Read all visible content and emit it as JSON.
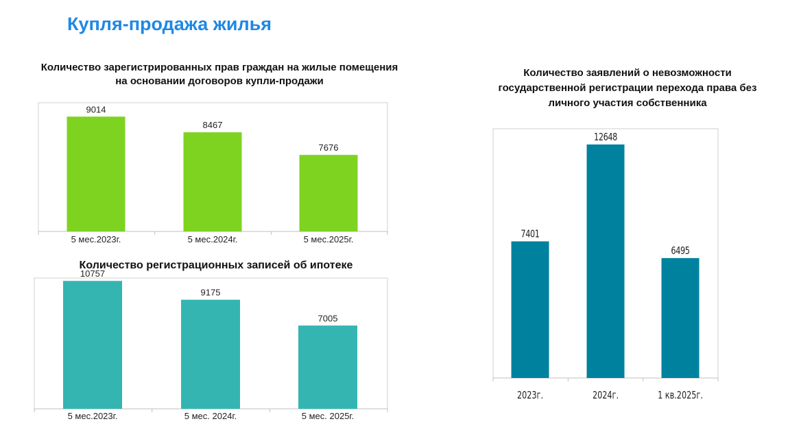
{
  "page": {
    "title": "Купля-продажа жилья"
  },
  "chart_data": [
    {
      "id": "rights",
      "type": "bar",
      "title_lines": [
        "Количество зарегистрированных прав граждан на жилые помещения",
        "на основании договоров купли-продажи"
      ],
      "categories": [
        "5 мес.2023г.",
        "5 мес.2024г.",
        "5 мес.2025г."
      ],
      "values": [
        9014,
        8467,
        7676
      ],
      "ylim": [
        5000,
        9500
      ],
      "color": "#7ed321"
    },
    {
      "id": "mortgage",
      "type": "bar",
      "title_lines": [
        "Количество регистрационных записей об ипотеке"
      ],
      "categories": [
        "5 мес.2023г.",
        "5 мес. 2024г.",
        "5 мес. 2025г."
      ],
      "values": [
        10757,
        9175,
        7005
      ],
      "ylim": [
        0,
        11000
      ],
      "color": "#34b5b2"
    },
    {
      "id": "applications",
      "type": "bar",
      "title_lines": [
        "Количество заявлений о невозможности",
        "государственной регистрации перехода права без",
        "личного участия собственника"
      ],
      "categories": [
        "2023г.",
        "2024г.",
        "1 кв.2025г."
      ],
      "values": [
        7401,
        12648,
        6495
      ],
      "ylim": [
        0,
        13500
      ],
      "color": "#00829e"
    }
  ]
}
